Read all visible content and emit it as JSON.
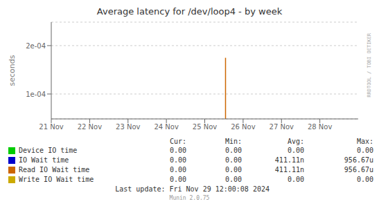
{
  "chart_data": {
    "type": "line",
    "title": "Average latency for /dev/loop4 - by week",
    "y_label": "seconds",
    "log": "y",
    "grid": true,
    "x": [
      1732453200,
      1732453200
    ],
    "xlim": [
      1732060800,
      1732752000
    ],
    "xticks": [
      {
        "value": 1732060800,
        "label": "21 Nov"
      },
      {
        "value": 1732147200,
        "label": "22 Nov"
      },
      {
        "value": 1732233600,
        "label": "23 Nov"
      },
      {
        "value": 1732320000,
        "label": "24 Nov"
      },
      {
        "value": 1732406400,
        "label": "25 Nov"
      },
      {
        "value": 1732492800,
        "label": "26 Nov"
      },
      {
        "value": 1732579200,
        "label": "27 Nov"
      },
      {
        "value": 1732665600,
        "label": "28 Nov"
      }
    ],
    "ylim": [
      7e-05,
      0.00028
    ],
    "yticks": [
      {
        "value": 0.0001,
        "label": "1e-04"
      },
      {
        "value": 0.0002,
        "label": "2e-04"
      }
    ],
    "series": [
      {
        "name": "Device IO time",
        "color": "#00cc00",
        "values": [
          null,
          null
        ],
        "stats": [
          "0.00",
          "0.00",
          "0.00",
          "0.00"
        ]
      },
      {
        "name": "IO Wait time",
        "color": "#0000cc",
        "values": [
          null,
          null
        ],
        "stats": [
          "0.00",
          "0.00",
          "411.11n",
          "956.67u"
        ]
      },
      {
        "name": "Read IO Wait time",
        "color": "#cc6600",
        "values": [
          7e-05,
          0.000168
        ],
        "stats": [
          "0.00",
          "0.00",
          "411.11n",
          "956.67u"
        ]
      },
      {
        "name": "Write IO Wait time",
        "color": "#ccaa00",
        "values": [
          null,
          null
        ],
        "stats": [
          "0.00",
          "0.00",
          "0.00",
          "0.00"
        ]
      }
    ],
    "stats_headers": [
      "Cur:",
      "Min:",
      "Avg:",
      "Max:"
    ],
    "footer": "Last update: Fri Nov 29 12:00:08 2024",
    "credit": "Munin 2.0.75",
    "side_label": "RRDTOOL / TOBI OETIKER"
  }
}
